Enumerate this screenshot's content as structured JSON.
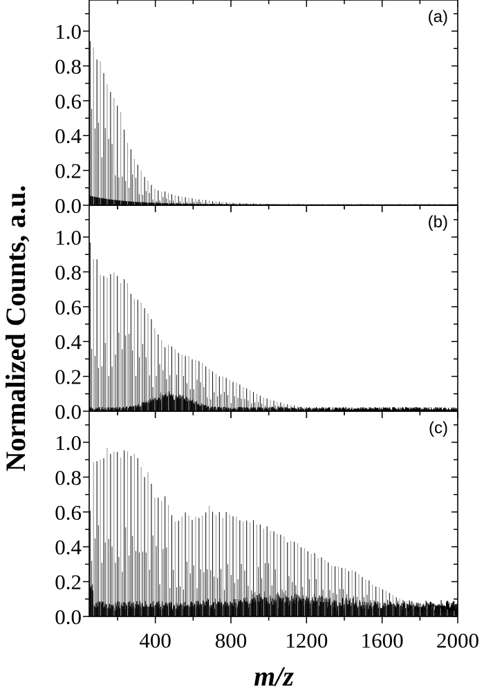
{
  "chart_data": {
    "type": "line",
    "subtype": "mass-spectrum (stick spectra, 3 stacked panels)",
    "xlabel": "m/z",
    "ylabel": "Normalized Counts, a.u.",
    "xlim": [
      50,
      2000
    ],
    "x_ticks": [
      400,
      800,
      1200,
      1600,
      2000
    ],
    "x_minor_step": 200,
    "ylim": [
      0.0,
      1.15
    ],
    "y_ticks": [
      "0.0",
      "0.2",
      "0.4",
      "0.6",
      "0.8",
      "1.0"
    ],
    "y_minor_step": 0.1,
    "grid": false,
    "legend": null,
    "peak_spacing_mz": 18,
    "panels": [
      {
        "label": "(a)",
        "envelope_mz": [
          55,
          75,
          95,
          115,
          135,
          160,
          185,
          210,
          240,
          270,
          300,
          330,
          360,
          400,
          450,
          500,
          600,
          700,
          800,
          1000,
          1200,
          2000
        ],
        "envelope_height": [
          1.0,
          0.9,
          0.87,
          0.87,
          0.72,
          0.68,
          0.64,
          0.58,
          0.42,
          0.33,
          0.25,
          0.19,
          0.15,
          0.09,
          0.08,
          0.06,
          0.04,
          0.025,
          0.015,
          0.008,
          0.004,
          0.002
        ],
        "baseline_start": 0.05,
        "baseline_decay_mz": 200,
        "noise_level": 0.01
      },
      {
        "label": "(b)",
        "envelope_mz": [
          55,
          75,
          95,
          115,
          135,
          160,
          185,
          215,
          250,
          285,
          320,
          360,
          400,
          450,
          500,
          560,
          620,
          680,
          740,
          800,
          860,
          920,
          1000,
          1100,
          1200,
          1300,
          1400
        ],
        "envelope_height": [
          1.0,
          0.92,
          0.86,
          0.82,
          0.8,
          0.79,
          0.81,
          0.77,
          0.75,
          0.68,
          0.66,
          0.57,
          0.5,
          0.39,
          0.37,
          0.33,
          0.3,
          0.26,
          0.21,
          0.18,
          0.15,
          0.11,
          0.07,
          0.04,
          0.02,
          0.008,
          0.003
        ],
        "baseline_start": 0.0,
        "hump_center_mz": 480,
        "hump_height": 0.1,
        "noise_level": 0.02
      },
      {
        "label": "(c)",
        "envelope_mz": [
          55,
          75,
          100,
          125,
          150,
          175,
          200,
          225,
          250,
          280,
          310,
          340,
          370,
          400,
          450,
          500,
          560,
          620,
          680,
          740,
          800,
          860,
          920,
          980,
          1040,
          1100,
          1160,
          1220,
          1300,
          1380,
          1460,
          1540,
          1620,
          1700,
          1800,
          1900,
          2000
        ],
        "envelope_height": [
          0.62,
          0.93,
          0.94,
          0.95,
          0.98,
          0.97,
          1.0,
          0.95,
          0.96,
          0.96,
          0.94,
          0.85,
          0.83,
          0.68,
          0.7,
          0.57,
          0.6,
          0.58,
          0.64,
          0.6,
          0.6,
          0.58,
          0.56,
          0.53,
          0.5,
          0.45,
          0.42,
          0.38,
          0.33,
          0.28,
          0.27,
          0.2,
          0.15,
          0.1,
          0.07,
          0.05,
          0.03
        ],
        "baseline_start": 0.12,
        "baseline_level": 0.04,
        "hump_center_mz": 1100,
        "hump_height": 0.06,
        "noise_level": 0.04
      }
    ]
  },
  "figure": {
    "ylabel": "Normalized Counts, a.u.",
    "xlabel": "m/z",
    "x_tick_labels": [
      "400",
      "800",
      "1200",
      "1600",
      "2000"
    ],
    "y_tick_labels": [
      "0.0",
      "0.2",
      "0.4",
      "0.6",
      "0.8",
      "1.0"
    ],
    "panel_labels": [
      "(a)",
      "(b)",
      "(c)"
    ]
  }
}
